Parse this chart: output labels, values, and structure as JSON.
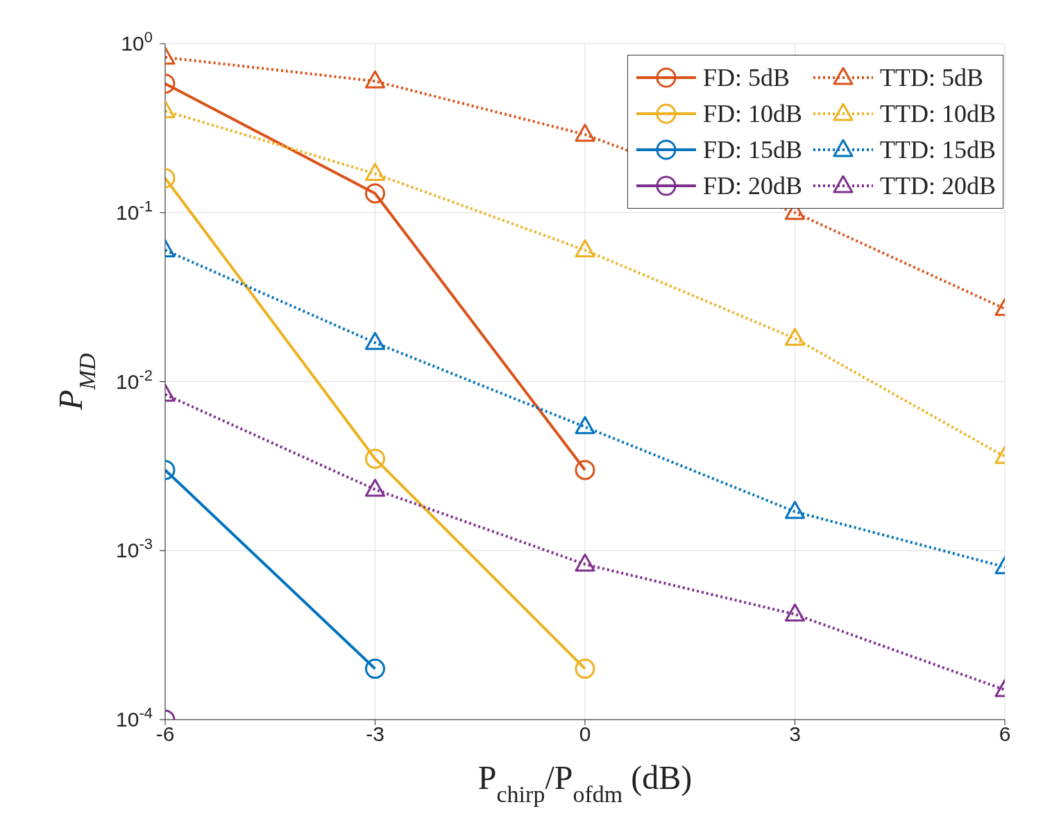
{
  "chart_data": {
    "type": "line",
    "xlabel": "P$_{chirp}$/P$_{ofdm}$ (dB)",
    "ylabel": "P$_{MD}$",
    "x": [
      -6,
      -3,
      0,
      3,
      6
    ],
    "xlim": [
      -6,
      6
    ],
    "xticks": [
      -6,
      -3,
      0,
      3,
      6
    ],
    "ylim": [
      0.0001,
      1
    ],
    "yticks": [
      {
        "value": 0.0001,
        "label": "10$^{-4}$"
      },
      {
        "value": 0.001,
        "label": "10$^{-3}$"
      },
      {
        "value": 0.01,
        "label": "10$^{-2}$"
      },
      {
        "value": 0.1,
        "label": "10$^{-1}$"
      },
      {
        "value": 1,
        "label": "10$^{0}$"
      }
    ],
    "log": "y",
    "grid": true,
    "legend": "top right",
    "series": [
      {
        "name": "FD: 5dB",
        "color": "#d95319",
        "marker": "circle",
        "line_style": "solid",
        "values": [
          0.58,
          0.13,
          0.003,
          null,
          null
        ]
      },
      {
        "name": "FD: 10dB",
        "color": "#edb120",
        "marker": "circle",
        "line_style": "solid",
        "values": [
          0.16,
          0.0035,
          0.0002,
          null,
          null
        ]
      },
      {
        "name": "FD: 15dB",
        "color": "#0072bd",
        "marker": "circle",
        "line_style": "solid",
        "values": [
          0.003,
          0.0002,
          null,
          null,
          null
        ]
      },
      {
        "name": "FD: 20dB",
        "color": "#7e2f8e",
        "marker": "circle",
        "line_style": "solid",
        "values": [
          0.0001,
          null,
          null,
          null,
          null
        ]
      },
      {
        "name": "TTD: 5dB",
        "color": "#d95319",
        "marker": "triangle",
        "line_style": "dotted",
        "values": [
          0.83,
          0.6,
          0.29,
          0.1,
          0.027
        ]
      },
      {
        "name": "TTD: 10dB",
        "color": "#edb120",
        "marker": "triangle",
        "line_style": "dotted",
        "values": [
          0.4,
          0.17,
          0.06,
          0.018,
          0.0036
        ]
      },
      {
        "name": "TTD: 15dB",
        "color": "#0072bd",
        "marker": "triangle",
        "line_style": "dotted",
        "values": [
          0.06,
          0.017,
          0.0054,
          0.0017,
          0.0008
        ]
      },
      {
        "name": "TTD: 20dB",
        "color": "#7e2f8e",
        "marker": "triangle",
        "line_style": "dotted",
        "values": [
          0.0084,
          0.0023,
          0.00083,
          0.00042,
          0.00015
        ]
      }
    ]
  }
}
